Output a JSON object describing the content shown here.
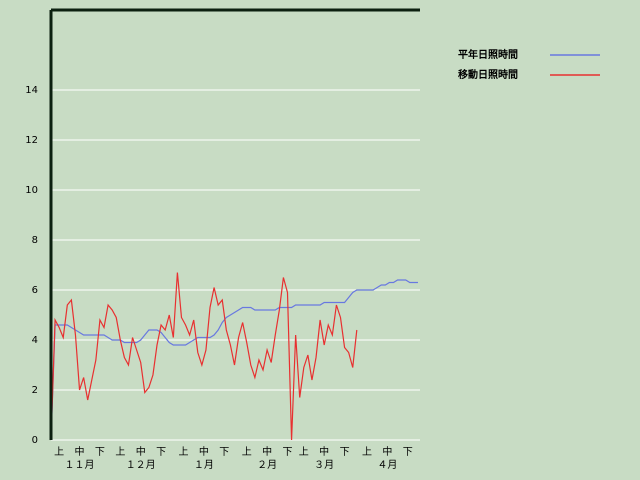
{
  "chart_data": {
    "type": "line",
    "x": [
      0,
      2,
      4,
      6,
      8,
      10,
      12,
      14,
      16,
      18,
      20,
      22,
      24,
      26,
      28,
      30,
      32,
      34,
      36,
      38,
      40,
      42,
      44,
      46,
      48,
      50,
      52,
      54,
      56,
      58,
      60,
      62,
      64,
      66,
      68,
      70,
      72,
      74,
      76,
      78,
      80,
      82,
      84,
      86,
      88,
      90,
      92,
      94,
      96,
      98,
      100,
      102,
      104,
      106,
      108,
      110,
      112,
      114,
      116,
      118,
      120,
      122,
      124,
      126,
      128,
      130,
      132,
      134,
      136,
      138,
      140,
      142,
      144,
      146,
      148,
      150,
      152,
      154,
      156,
      158,
      160,
      162,
      164,
      166,
      168,
      170,
      172,
      174,
      176,
      178,
      180
    ],
    "series": [
      {
        "name": "平年日照時間",
        "color": "#6878e0",
        "values": [
          0,
          4.6,
          4.6,
          4.6,
          4.6,
          4.5,
          4.4,
          4.3,
          4.2,
          4.2,
          4.2,
          4.2,
          4.2,
          4.2,
          4.1,
          4.0,
          4.0,
          4.0,
          3.9,
          3.9,
          3.9,
          3.9,
          4.0,
          4.2,
          4.4,
          4.4,
          4.4,
          4.3,
          4.1,
          3.9,
          3.8,
          3.8,
          3.8,
          3.8,
          3.9,
          4.0,
          4.1,
          4.1,
          4.1,
          4.1,
          4.2,
          4.4,
          4.7,
          4.9,
          5.0,
          5.1,
          5.2,
          5.3,
          5.3,
          5.3,
          5.2,
          5.2,
          5.2,
          5.2,
          5.2,
          5.2,
          5.3,
          5.3,
          5.3,
          5.3,
          5.4,
          5.4,
          5.4,
          5.4,
          5.4,
          5.4,
          5.4,
          5.5,
          5.5,
          5.5,
          5.5,
          5.5,
          5.5,
          5.7,
          5.9,
          6.0,
          6.0,
          6.0,
          6.0,
          6.0,
          6.1,
          6.2,
          6.2,
          6.3,
          6.3,
          6.4,
          6.4,
          6.4,
          6.3,
          6.3,
          6.3
        ]
      },
      {
        "name": "移動日照時間",
        "color": "#e83030",
        "values": [
          0,
          4.8,
          4.5,
          4.1,
          5.4,
          5.6,
          4.2,
          2.0,
          2.5,
          1.6,
          2.4,
          3.2,
          4.8,
          4.5,
          5.4,
          5.2,
          4.9,
          4.0,
          3.3,
          3.0,
          4.1,
          3.6,
          3.1,
          1.9,
          2.1,
          2.6,
          3.8,
          4.6,
          4.4,
          5.0,
          4.1,
          6.7,
          4.9,
          4.6,
          4.2,
          4.8,
          3.5,
          3.0,
          3.6,
          5.3,
          6.1,
          5.4,
          5.6,
          4.4,
          3.8,
          3.0,
          4.1,
          4.7,
          3.9,
          3.0,
          2.5,
          3.2,
          2.8,
          3.6,
          3.1,
          4.2,
          5.2,
          6.5,
          5.9,
          0,
          4.2,
          1.7,
          2.9,
          3.4,
          2.4,
          3.3,
          4.8,
          3.8,
          4.6,
          4.2,
          5.4,
          4.9,
          3.7,
          3.5,
          2.9,
          4.4,
          null,
          null,
          null,
          null,
          null,
          null,
          null,
          null,
          null,
          null,
          null,
          null,
          null,
          null,
          null
        ]
      }
    ],
    "xlim": [
      0,
      181
    ],
    "xticks": [
      {
        "value": 4,
        "label": "上"
      },
      {
        "value": 14,
        "label": "中"
      },
      {
        "value": 24,
        "label": "下"
      },
      {
        "value": 34,
        "label": "上"
      },
      {
        "value": 44,
        "label": "中"
      },
      {
        "value": 54,
        "label": "下"
      },
      {
        "value": 65,
        "label": "上"
      },
      {
        "value": 75,
        "label": "中"
      },
      {
        "value": 85,
        "label": "下"
      },
      {
        "value": 96,
        "label": "上"
      },
      {
        "value": 106,
        "label": "中"
      },
      {
        "value": 116,
        "label": "下"
      },
      {
        "value": 124,
        "label": "上"
      },
      {
        "value": 134,
        "label": "中"
      },
      {
        "value": 144,
        "label": "下"
      },
      {
        "value": 155,
        "label": "上"
      },
      {
        "value": 165,
        "label": "中"
      },
      {
        "value": 175,
        "label": "下"
      }
    ],
    "month_labels": [
      {
        "value": 14,
        "label": "１１月"
      },
      {
        "value": 44,
        "label": "１２月"
      },
      {
        "value": 75,
        "label": "１月"
      },
      {
        "value": 106,
        "label": "２月"
      },
      {
        "value": 134,
        "label": "３月"
      },
      {
        "value": 165,
        "label": "４月"
      }
    ],
    "ylim": [
      0,
      17.2
    ],
    "yticks": [
      0,
      2,
      4,
      6,
      8,
      10,
      12,
      14
    ],
    "grid": true
  }
}
